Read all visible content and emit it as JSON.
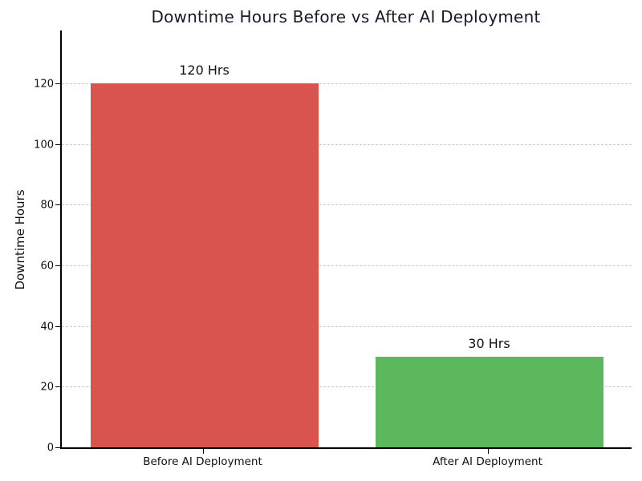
{
  "chart_data": {
    "type": "bar",
    "title": "Downtime Hours Before vs After AI Deployment",
    "xlabel": "",
    "ylabel": "Downtime Hours",
    "categories": [
      "Before AI Deployment",
      "After AI Deployment"
    ],
    "values": [
      120,
      30
    ],
    "bar_labels": [
      "120 Hrs",
      "30 Hrs"
    ],
    "bar_colors": [
      "#d9534f",
      "#5cb85c"
    ],
    "yticks": [
      0,
      20,
      40,
      60,
      80,
      100,
      120
    ],
    "ylim": [
      0,
      137.5
    ],
    "grid": "horizontal-dashed",
    "legend": "none"
  },
  "colors": {
    "background": "#ffffff",
    "title_text": "#1a1a2e",
    "axis_text": "#111111",
    "spine": "#000000",
    "gridline": "#c8c8c8",
    "before_bar": "#d9534f",
    "after_bar": "#5cb85c"
  }
}
